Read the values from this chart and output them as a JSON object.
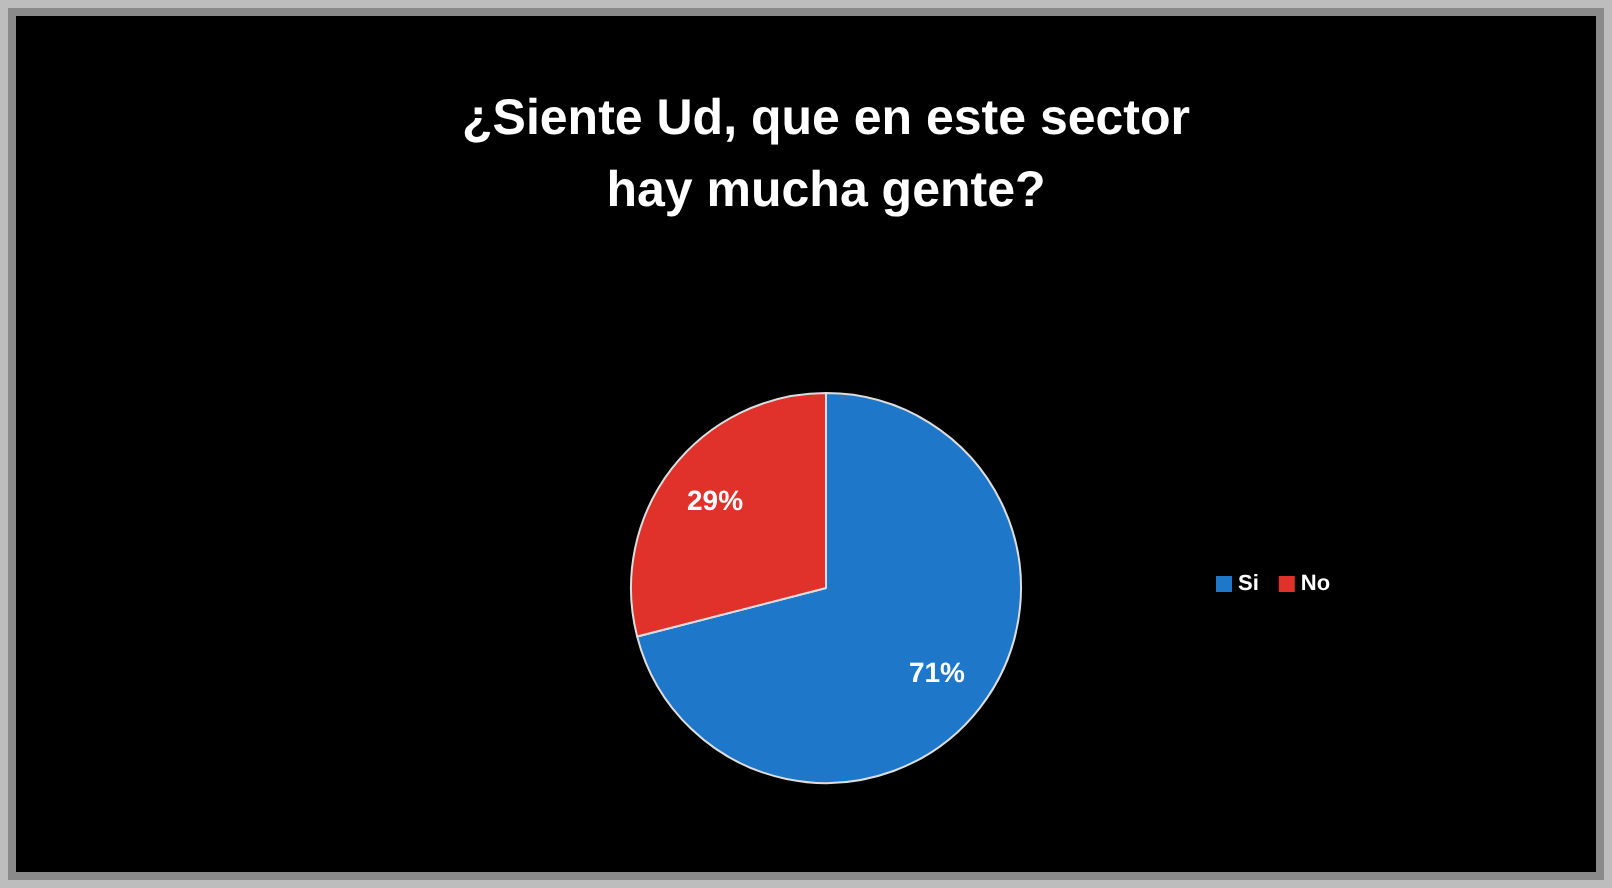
{
  "chart_data": {
    "type": "pie",
    "title": "¿Siente Ud, que en este sector hay mucha gente?",
    "categories": [
      "Si",
      "No"
    ],
    "values": [
      71,
      29
    ],
    "colors": [
      "#1f77c9",
      "#e0312b"
    ],
    "value_labels": [
      "71%",
      "29%"
    ],
    "legend": "right"
  }
}
